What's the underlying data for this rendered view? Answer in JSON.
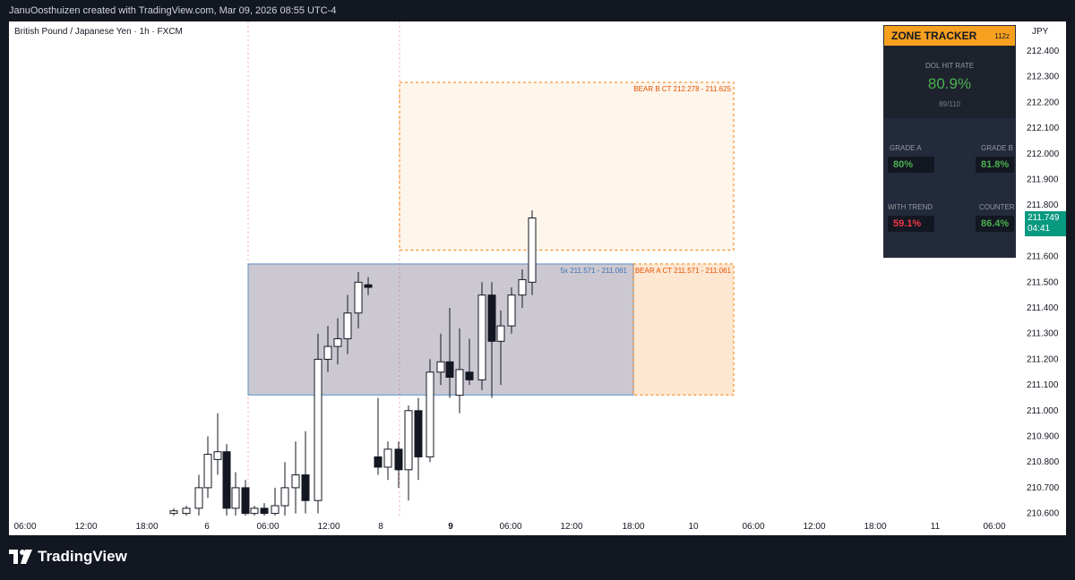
{
  "header": {
    "attribution": "JanuOosthuizen created with TradingView.com, Mar 09, 2026 08:55 UTC-4"
  },
  "symbol": "British Pound / Japanese Yen · 1h · FXCM",
  "currency": "JPY",
  "footer": {
    "logo_text": "TradingView",
    "logo_icon": "tradingview-logo-icon"
  },
  "last_price": {
    "value": "211.749",
    "countdown": "04:41",
    "color": "#089981"
  },
  "zone_tracker": {
    "title": "ZONE TRACKER",
    "badge": "112z",
    "dol_label": "DOL HIT RATE",
    "dol_value": "80.9%",
    "dol_count": "89/110",
    "grade_a_label": "GRADE A",
    "grade_a_value": "80%",
    "grade_b_label": "GRADE B",
    "grade_b_value": "81.8%",
    "with_trend_label": "WITH TREND",
    "with_trend_value": "59.1%",
    "counter_label": "COUNTER",
    "counter_value": "86.4%",
    "colors": {
      "header": "#f7a01f",
      "green": "#4caf50",
      "red": "#f23645"
    }
  },
  "chart_data": {
    "type": "candlestick",
    "x_tick_labels": [
      "06:00",
      "12:00",
      "18:00",
      "6",
      "06:00",
      "12:00",
      "8",
      "9",
      "06:00",
      "12:00",
      "18:00",
      "10",
      "06:00",
      "12:00",
      "18:00",
      "11",
      "06:00"
    ],
    "y_ticks": [
      "212.400",
      "212.300",
      "212.200",
      "212.100",
      "212.000",
      "211.900",
      "211.800",
      "211.700",
      "211.600",
      "211.500",
      "211.400",
      "211.300",
      "211.200",
      "211.100",
      "211.000",
      "210.900",
      "210.800",
      "210.700",
      "210.600"
    ],
    "ylim": [
      210.6,
      212.45
    ],
    "zones": [
      {
        "label": "5x  211.571 - 211.061",
        "high": 211.571,
        "low": 211.061,
        "color": "#9c95a8"
      },
      {
        "label": "BEAR A CT  211.571 - 211.061",
        "high": 211.571,
        "low": 211.061,
        "color": "#f57c00"
      },
      {
        "label": "BEAR B CT  212.278 - 211.625",
        "high": 212.278,
        "low": 211.625,
        "color": "#f57c00"
      }
    ],
    "candles": [
      {
        "o": 210.6,
        "h": 210.62,
        "l": 210.58,
        "c": 210.61
      },
      {
        "o": 210.6,
        "h": 210.63,
        "l": 210.58,
        "c": 210.62
      },
      {
        "o": 210.62,
        "h": 210.75,
        "l": 210.58,
        "c": 210.7
      },
      {
        "o": 210.7,
        "h": 210.9,
        "l": 210.66,
        "c": 210.83
      },
      {
        "o": 210.81,
        "h": 210.99,
        "l": 210.75,
        "c": 210.84
      },
      {
        "o": 210.84,
        "h": 210.87,
        "l": 210.58,
        "c": 210.62
      },
      {
        "o": 210.62,
        "h": 210.76,
        "l": 210.58,
        "c": 210.7
      },
      {
        "o": 210.7,
        "h": 210.73,
        "l": 210.55,
        "c": 210.6
      },
      {
        "o": 210.6,
        "h": 210.63,
        "l": 210.55,
        "c": 210.62
      },
      {
        "o": 210.62,
        "h": 210.64,
        "l": 210.55,
        "c": 210.6
      },
      {
        "o": 210.6,
        "h": 210.7,
        "l": 210.55,
        "c": 210.63
      },
      {
        "o": 210.63,
        "h": 210.8,
        "l": 210.58,
        "c": 210.7
      },
      {
        "o": 210.7,
        "h": 210.88,
        "l": 210.6,
        "c": 210.75
      },
      {
        "o": 210.75,
        "h": 210.92,
        "l": 210.6,
        "c": 210.65
      },
      {
        "o": 210.65,
        "h": 211.3,
        "l": 210.6,
        "c": 211.2
      },
      {
        "o": 211.2,
        "h": 211.33,
        "l": 211.15,
        "c": 211.25
      },
      {
        "o": 211.25,
        "h": 211.36,
        "l": 211.18,
        "c": 211.28
      },
      {
        "o": 211.28,
        "h": 211.45,
        "l": 211.22,
        "c": 211.38
      },
      {
        "o": 211.38,
        "h": 211.54,
        "l": 211.32,
        "c": 211.5
      },
      {
        "o": 211.49,
        "h": 211.52,
        "l": 211.45,
        "c": 211.48
      },
      {
        "o": 210.82,
        "h": 211.05,
        "l": 210.75,
        "c": 210.78
      },
      {
        "o": 210.78,
        "h": 210.88,
        "l": 210.73,
        "c": 210.85
      },
      {
        "o": 210.85,
        "h": 210.88,
        "l": 210.7,
        "c": 210.77
      },
      {
        "o": 210.77,
        "h": 211.02,
        "l": 210.65,
        "c": 211.0
      },
      {
        "o": 211.0,
        "h": 211.05,
        "l": 210.73,
        "c": 210.82
      },
      {
        "o": 210.82,
        "h": 211.2,
        "l": 210.8,
        "c": 211.15
      },
      {
        "o": 211.15,
        "h": 211.3,
        "l": 211.1,
        "c": 211.19
      },
      {
        "o": 211.19,
        "h": 211.4,
        "l": 211.05,
        "c": 211.13
      },
      {
        "o": 211.06,
        "h": 211.32,
        "l": 210.99,
        "c": 211.16
      },
      {
        "o": 211.15,
        "h": 211.28,
        "l": 211.1,
        "c": 211.12
      },
      {
        "o": 211.12,
        "h": 211.5,
        "l": 211.08,
        "c": 211.45
      },
      {
        "o": 211.45,
        "h": 211.5,
        "l": 211.05,
        "c": 211.27
      },
      {
        "o": 211.27,
        "h": 211.39,
        "l": 211.1,
        "c": 211.33
      },
      {
        "o": 211.33,
        "h": 211.48,
        "l": 211.3,
        "c": 211.45
      },
      {
        "o": 211.45,
        "h": 211.55,
        "l": 211.4,
        "c": 211.51
      },
      {
        "o": 211.5,
        "h": 211.78,
        "l": 211.45,
        "c": 211.75
      }
    ]
  }
}
